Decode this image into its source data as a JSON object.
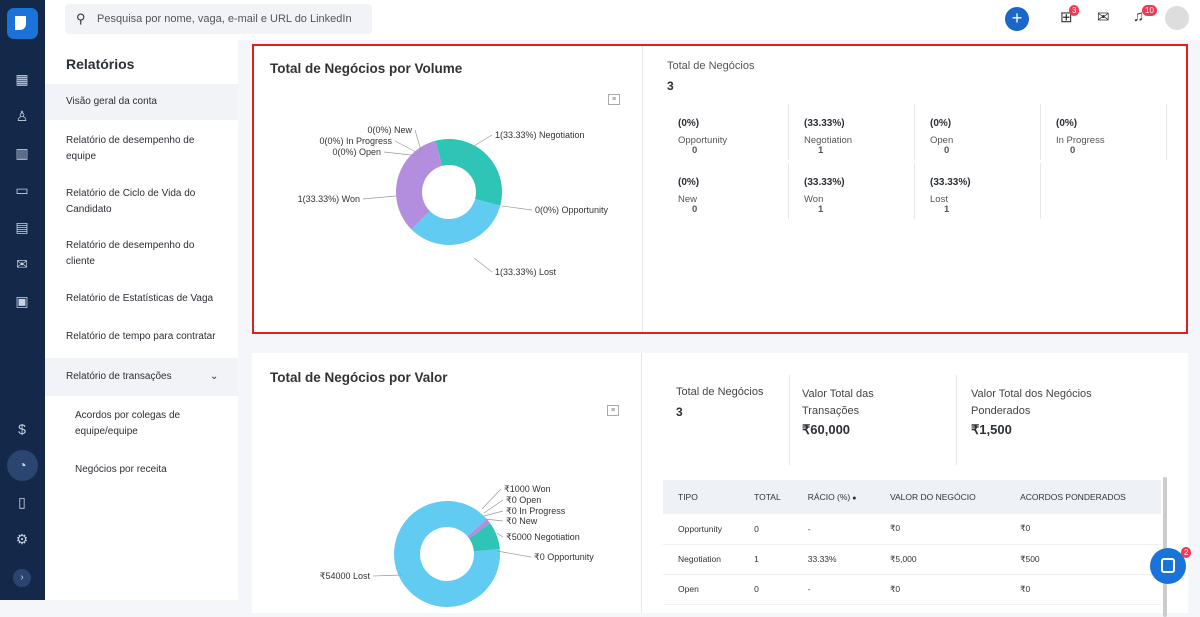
{
  "search": {
    "placeholder": "Pesquisa por nome, vaga, e-mail e URL do LinkedIn"
  },
  "topbar": {
    "gift_badge": "3",
    "bell_badge": "10"
  },
  "sidebar": {
    "title": "Relatórios",
    "items": [
      {
        "label": "Visão geral da conta"
      },
      {
        "label": "Relatório de desempenho de equipe"
      },
      {
        "label": "Relatório de Ciclo de Vida do Candidato"
      },
      {
        "label": "Relatório de desempenho do cliente"
      },
      {
        "label": "Relatório de Estatísticas de Vaga"
      },
      {
        "label": "Relatório de tempo para contratar"
      },
      {
        "label": "Relatório de transações"
      },
      {
        "label": "Acordos por colegas de equipe/equipe"
      },
      {
        "label": "Negócios por receita"
      }
    ]
  },
  "volume": {
    "title": "Total de Negócios por Volume",
    "total_label": "Total de Negócios",
    "total": "3",
    "stats": [
      {
        "value": "0",
        "pct": "(0%)",
        "label": "Opportunity"
      },
      {
        "value": "1",
        "pct": "(33.33%)",
        "label": "Negotiation"
      },
      {
        "value": "0",
        "pct": "(0%)",
        "label": "Open"
      },
      {
        "value": "0",
        "pct": "(0%)",
        "label": "In Progress"
      },
      {
        "value": "0",
        "pct": "(0%)",
        "label": "New"
      },
      {
        "value": "1",
        "pct": "(33.33%)",
        "label": "Won"
      },
      {
        "value": "1",
        "pct": "(33.33%)",
        "label": "Lost"
      }
    ],
    "chart_labels": [
      "0(0%) New",
      "0(0%) In Progress",
      "0(0%) Open",
      "1(33.33%) Negotiation",
      "1(33.33%) Won",
      "0(0%) Opportunity",
      "1(33.33%) Lost"
    ]
  },
  "valor": {
    "title": "Total de Negócios por Valor",
    "total_label": "Total de Negócios",
    "total": "3",
    "sum_label": "Valor Total das Transações",
    "sum": "₹60,000",
    "weighted_label": "Valor Total dos Negócios Ponderados",
    "weighted": "₹1,500",
    "chart_labels": [
      "₹1000 Won",
      "₹0 Open",
      "₹0 In Progress",
      "₹0 New",
      "₹5000 Negotiation",
      "₹0 Opportunity",
      "₹54000 Lost"
    ],
    "table": {
      "headers": [
        "TIPO",
        "TOTAL",
        "RÁCIO (%)",
        "VALOR DO NEGÓCIO",
        "ACORDOS PONDERADOS"
      ],
      "rows": [
        [
          "Opportunity",
          "0",
          "-",
          "₹0",
          "₹0"
        ],
        [
          "Negotiation",
          "1",
          "33.33%",
          "₹5,000",
          "₹500"
        ],
        [
          "Open",
          "0",
          "-",
          "₹0",
          "₹0"
        ]
      ]
    }
  },
  "chat": {
    "badge": "2"
  },
  "chart_data": [
    {
      "type": "pie",
      "title": "Total de Negócios por Volume",
      "categories": [
        "Negotiation",
        "Lost",
        "Won",
        "Opportunity",
        "Open",
        "In Progress",
        "New"
      ],
      "values": [
        1,
        1,
        1,
        0,
        0,
        0,
        0
      ],
      "colors": [
        "#2ec4b6",
        "#62cbf2",
        "#b48ede",
        "#f2c14e",
        "#888",
        "#888",
        "#888"
      ]
    },
    {
      "type": "pie",
      "title": "Total de Negócios por Valor",
      "categories": [
        "Won",
        "Negotiation",
        "Lost",
        "Opportunity",
        "Open",
        "In Progress",
        "New"
      ],
      "values": [
        1000,
        5000,
        54000,
        0,
        0,
        0,
        0
      ],
      "colors": [
        "#b48ede",
        "#2ec4b6",
        "#62cbf2",
        "#f2c14e",
        "#888",
        "#888",
        "#888"
      ]
    }
  ]
}
